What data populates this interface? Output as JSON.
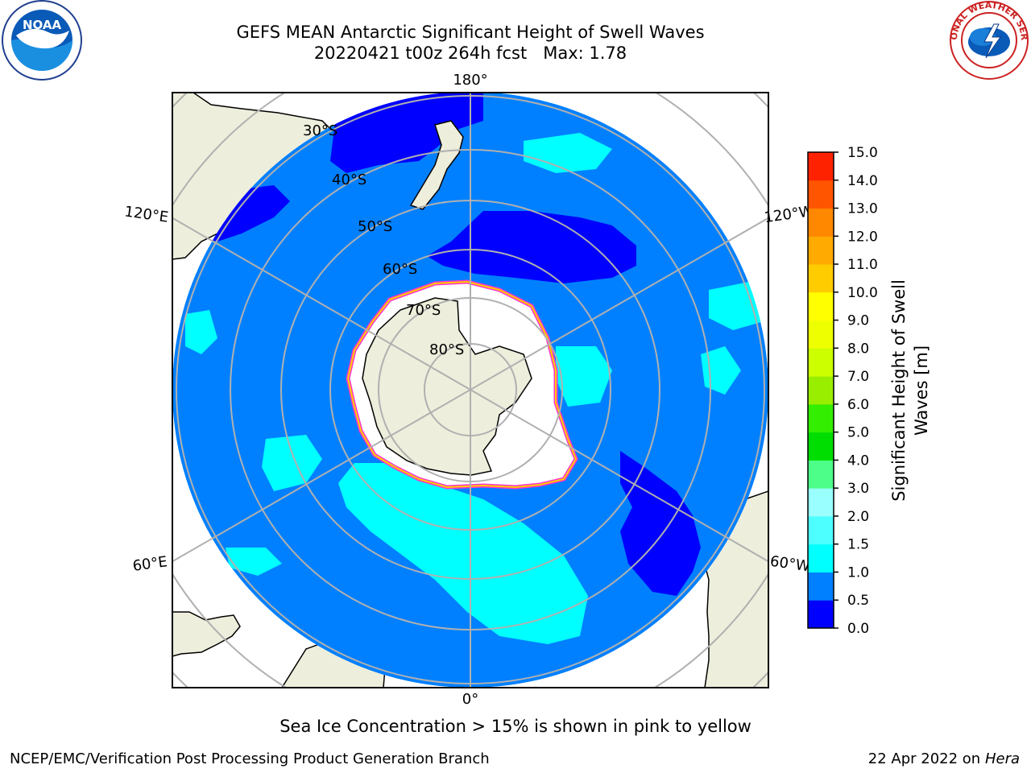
{
  "header": {
    "title_line1": "GEFS MEAN Antarctic Significant Height of Swell Waves",
    "title_line2": "20220421 t00z 264h fcst   Max: 1.78"
  },
  "map": {
    "projection": "south-polar-stereographic",
    "longitude_labels": [
      "180°",
      "120°E",
      "120°W",
      "60°E",
      "60°W",
      "0°"
    ],
    "latitude_labels": [
      "30°S",
      "40°S",
      "50°S",
      "60°S",
      "70°S",
      "80°S"
    ],
    "colors": {
      "ocean_0_5_1_0": "#0080ff",
      "ocean_0_0_5": "#0000ff",
      "ocean_1_0_1_5": "#00ffff",
      "land": "#eeeedc",
      "ice_shelf": "#ffffff",
      "sea_ice_edge": "#ff33cc",
      "grid": "#b0b0b0"
    }
  },
  "colorbar": {
    "label_line1": "Significant Height of Swell",
    "label_line2": "Waves [m]",
    "ticks": [
      "0.0",
      "0.5",
      "1.0",
      "1.5",
      "2.0",
      "3.0",
      "4.0",
      "5.0",
      "6.0",
      "7.0",
      "8.0",
      "9.0",
      "10.0",
      "11.0",
      "12.0",
      "13.0",
      "14.0",
      "15.0"
    ],
    "colors": [
      "#0000ff",
      "#0080ff",
      "#00ffff",
      "#4dffff",
      "#99ffff",
      "#4dff88",
      "#00dd00",
      "#33ee00",
      "#99ee00",
      "#ccff00",
      "#eeff00",
      "#ffff00",
      "#ffcc00",
      "#ffaa00",
      "#ff8800",
      "#ff5500",
      "#ff2200"
    ]
  },
  "logos": {
    "left": "NOAA",
    "right": "NATIONAL WEATHER SERVICE"
  },
  "note": "Sea Ice Concentration > 15% is shown in pink to yellow",
  "footer": {
    "left": "NCEP/EMC/Verification Post Processing Product Generation Branch",
    "right_date": "22 Apr 2022 on ",
    "right_machine": "Hera"
  }
}
